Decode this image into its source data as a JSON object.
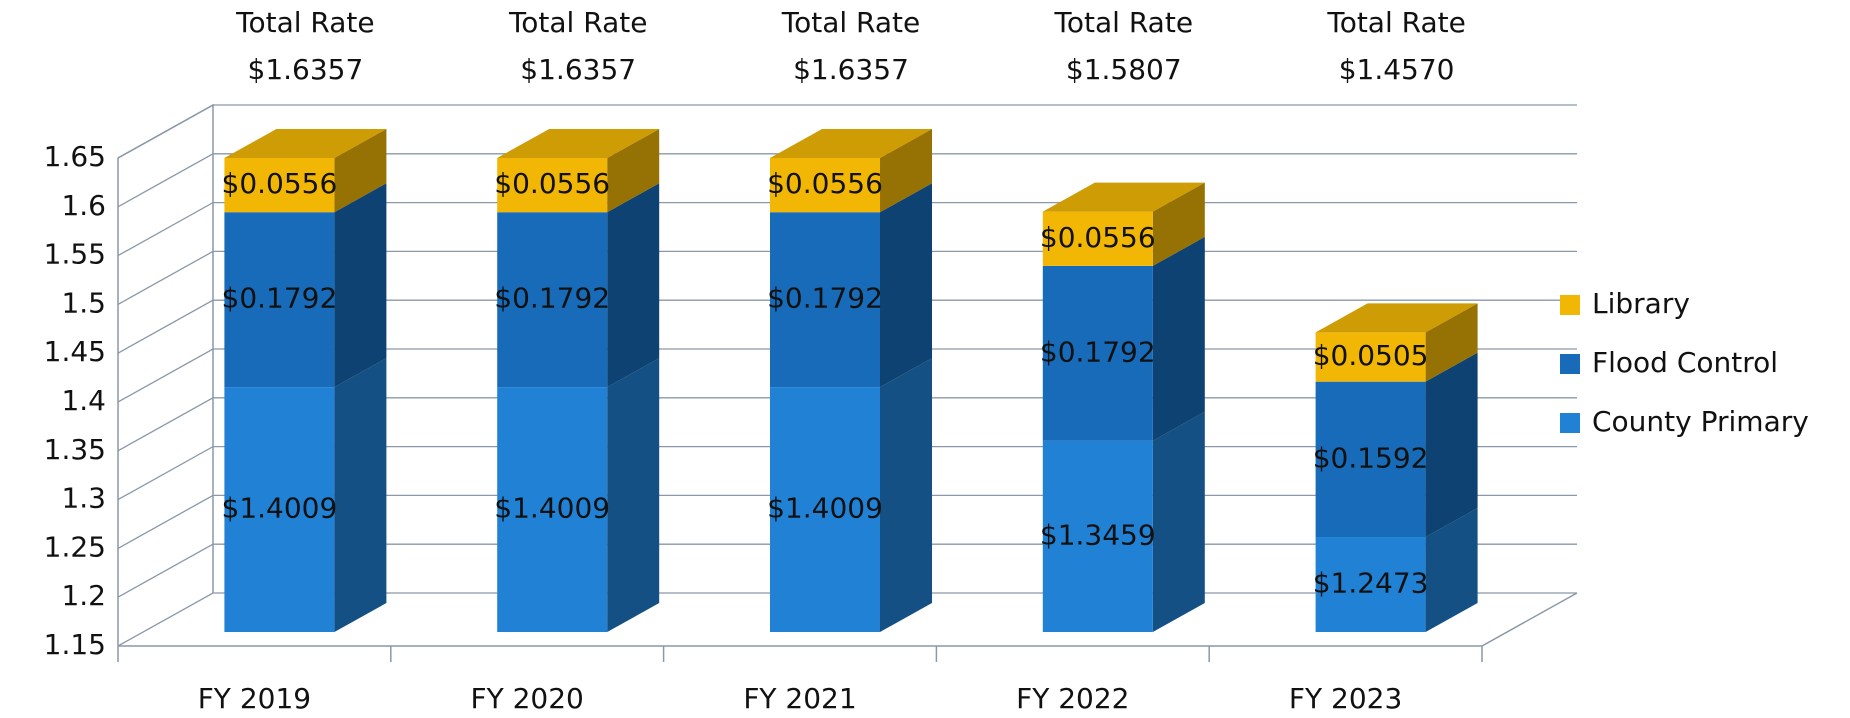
{
  "chart_data": {
    "type": "bar3d_stacked",
    "categories": [
      "FY 2019",
      "FY 2020",
      "FY 2021",
      "FY 2022",
      "FY 2023"
    ],
    "series": [
      {
        "name": "County Primary",
        "color": "#2181d4",
        "values": [
          1.4009,
          1.4009,
          1.4009,
          1.3459,
          1.2473
        ],
        "value_labels": [
          "$1.4009",
          "$1.4009",
          "$1.4009",
          "$1.3459",
          "$1.2473"
        ]
      },
      {
        "name": "Flood Control",
        "color": "#176bb8",
        "values": [
          0.1792,
          0.1792,
          0.1792,
          0.1792,
          0.1592
        ],
        "value_labels": [
          "$0.1792",
          "$0.1792",
          "$0.1792",
          "$0.1792",
          "$0.1592"
        ]
      },
      {
        "name": "Library",
        "color": "#f2b705",
        "values": [
          0.0556,
          0.0556,
          0.0556,
          0.0556,
          0.0505
        ],
        "value_labels": [
          "$0.0556",
          "$0.0556",
          "$0.0556",
          "$0.0556",
          "$0.0505"
        ]
      }
    ],
    "totals": {
      "label": "Total Rate",
      "values": [
        1.6357,
        1.6357,
        1.6357,
        1.5807,
        1.457
      ],
      "value_labels": [
        "$1.6357",
        "$1.6357",
        "$1.6357",
        "$1.5807",
        "$1.4570"
      ]
    },
    "ylim": [
      1.15,
      1.65
    ],
    "yticks": [
      1.15,
      1.2,
      1.25,
      1.3,
      1.35,
      1.4,
      1.45,
      1.5,
      1.55,
      1.6,
      1.65
    ],
    "grid": true,
    "legend": "right"
  }
}
